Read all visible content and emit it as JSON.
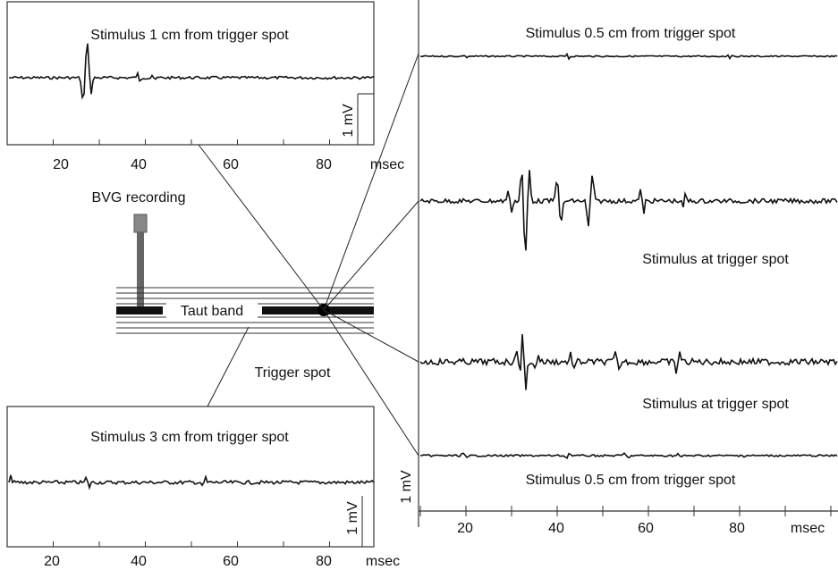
{
  "panels": [
    {
      "title": "Stimulus 1 cm from trigger spot",
      "scale": "1 mV",
      "ticks": [
        "20",
        "40",
        "60",
        "80"
      ],
      "unit": "msec"
    },
    {
      "title": "Stimulus 3 cm from trigger spot",
      "scale": "1 mV",
      "ticks": [
        "20",
        "40",
        "60",
        "80"
      ],
      "unit": "msec"
    }
  ],
  "right_panel": {
    "traces": [
      "Stimulus 0.5 cm from trigger spot",
      "Stimulus at trigger spot",
      "Stimulus at trigger spot",
      "Stimulus 0.5 cm from trigger spot"
    ],
    "scale": "1 mV",
    "ticks": [
      "20",
      "40",
      "60",
      "80"
    ],
    "unit": "msec"
  },
  "labels": {
    "recording": "BVG recording",
    "band": "Taut band",
    "trigger": "Trigger spot"
  }
}
